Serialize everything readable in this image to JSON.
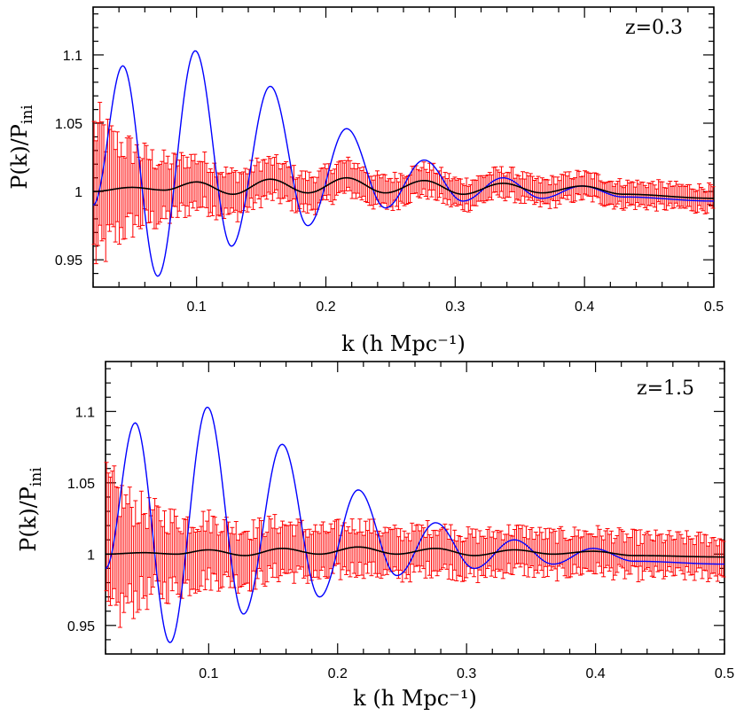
{
  "chart_data": [
    {
      "type": "line",
      "annotation": "z=0.3",
      "xlabel": "k (h Mpc⁻¹)",
      "ylabel_main": "P(k)/P",
      "ylabel_sub": "ini",
      "xlim": [
        0.02,
        0.5
      ],
      "ylim": [
        0.93,
        1.135
      ],
      "xticks": [
        0.1,
        0.2,
        0.3,
        0.4,
        0.5
      ],
      "xtick_labels": [
        "0.1",
        "0.2",
        "0.3",
        "0.4",
        "0.5"
      ],
      "yticks": [
        0.95,
        1.0,
        1.05,
        1.1
      ],
      "ytick_labels": [
        "0.95",
        "1",
        "1.05",
        "1.1"
      ],
      "series": [
        {
          "color": "#0000ff",
          "style": "line",
          "x": [
            0.02,
            0.043,
            0.07,
            0.099,
            0.127,
            0.157,
            0.186,
            0.216,
            0.246,
            0.276,
            0.306,
            0.337,
            0.367,
            0.398,
            0.43,
            0.5
          ],
          "y": [
            0.99,
            1.092,
            0.938,
            1.103,
            0.96,
            1.077,
            0.975,
            1.046,
            0.988,
            1.023,
            0.993,
            1.01,
            0.995,
            1.004,
            0.996,
            0.993
          ]
        },
        {
          "color": "#000000",
          "style": "line",
          "x": [
            0.02,
            0.05,
            0.075,
            0.1,
            0.128,
            0.157,
            0.186,
            0.216,
            0.246,
            0.276,
            0.306,
            0.337,
            0.367,
            0.398,
            0.43,
            0.5
          ],
          "y": [
            1.0,
            1.003,
            1.001,
            1.007,
            0.998,
            1.009,
            0.999,
            1.01,
            0.999,
            1.008,
            0.998,
            1.006,
            0.999,
            1.004,
            0.998,
            0.995
          ]
        },
        {
          "color": "#ff0000",
          "style": "errorbar",
          "x": [
            0.02,
            0.5
          ],
          "y": [
            1.001,
            0.995
          ],
          "yerr": [
            0.035,
            0.005
          ]
        }
      ]
    },
    {
      "type": "line",
      "annotation": "z=1.5",
      "xlabel": "k (h Mpc⁻¹)",
      "ylabel_main": "P(k)/P",
      "ylabel_sub": "ini",
      "xlim": [
        0.02,
        0.5
      ],
      "ylim": [
        0.93,
        1.135
      ],
      "xticks": [
        0.1,
        0.2,
        0.3,
        0.4,
        0.5
      ],
      "xtick_labels": [
        "0.1",
        "0.2",
        "0.3",
        "0.4",
        "0.5"
      ],
      "yticks": [
        0.95,
        1.0,
        1.05,
        1.1
      ],
      "ytick_labels": [
        "0.95",
        "1",
        "1.05",
        "1.1"
      ],
      "series": [
        {
          "color": "#0000ff",
          "style": "line",
          "x": [
            0.02,
            0.043,
            0.07,
            0.099,
            0.127,
            0.157,
            0.186,
            0.216,
            0.246,
            0.276,
            0.306,
            0.337,
            0.367,
            0.398,
            0.43,
            0.5
          ],
          "y": [
            0.99,
            1.092,
            0.938,
            1.103,
            0.958,
            1.077,
            0.97,
            1.045,
            0.985,
            1.022,
            0.99,
            1.01,
            0.993,
            1.004,
            0.995,
            0.993
          ]
        },
        {
          "color": "#000000",
          "style": "line",
          "x": [
            0.02,
            0.05,
            0.075,
            0.1,
            0.128,
            0.157,
            0.186,
            0.216,
            0.246,
            0.276,
            0.306,
            0.337,
            0.367,
            0.398,
            0.43,
            0.5
          ],
          "y": [
            1.0,
            1.001,
            1.0,
            1.003,
            0.999,
            1.004,
            1.0,
            1.005,
            1.0,
            1.004,
            0.999,
            1.003,
            1.0,
            1.002,
            0.999,
            0.998
          ]
        },
        {
          "color": "#ff0000",
          "style": "errorbar",
          "x": [
            0.02,
            0.5
          ],
          "y": [
            1.001,
            0.997
          ],
          "yerr": [
            0.03,
            0.01
          ]
        }
      ]
    }
  ]
}
